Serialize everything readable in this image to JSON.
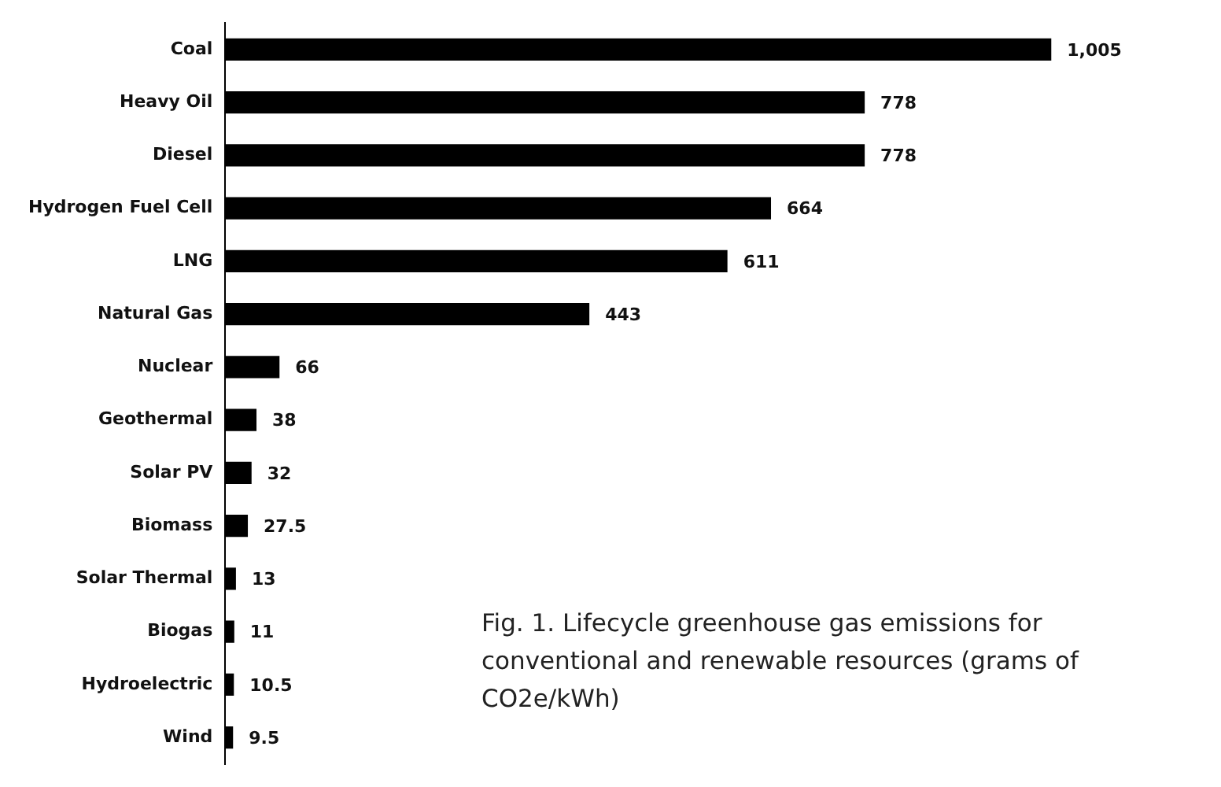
{
  "chart_data": {
    "type": "bar",
    "orientation": "horizontal",
    "categories": [
      "Coal",
      "Heavy Oil",
      "Diesel",
      "Hydrogen Fuel Cell",
      "LNG",
      "Natural Gas",
      "Nuclear",
      "Geothermal",
      "Solar PV",
      "Biomass",
      "Solar Thermal",
      "Biogas",
      "Hydroelectric",
      "Wind"
    ],
    "values": [
      1005,
      778,
      778,
      664,
      611,
      443,
      66,
      38,
      32,
      27.5,
      13,
      11,
      10.5,
      9.5
    ],
    "value_labels": [
      "1,005",
      "778",
      "778",
      "664",
      "611",
      "443",
      "66",
      "38",
      "32",
      "27.5",
      "13",
      "11",
      "10.5",
      "9.5"
    ],
    "color": "#000000",
    "grid": false,
    "legend": false,
    "tick_labels": "y",
    "annotations": [
      "Fig. 1. Lifecycle greenhouse gas emissions for conventional and renewable resources (grams of CO2e/kWh)"
    ]
  }
}
